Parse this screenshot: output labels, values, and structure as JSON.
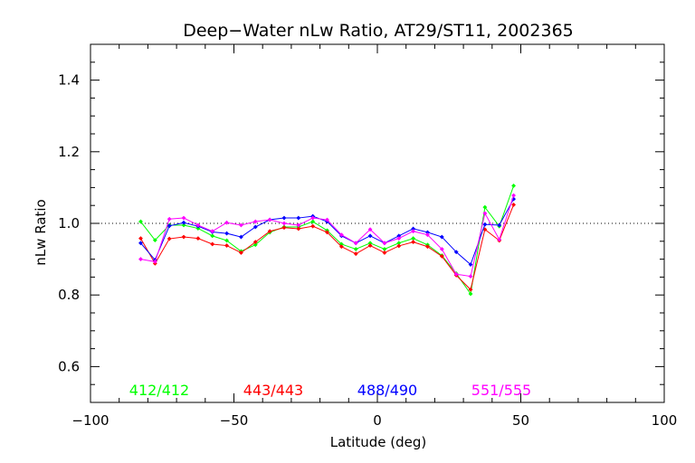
{
  "chart_data": {
    "type": "line",
    "title": "Deep−Water nLw Ratio, AT29/ST11, 2002365",
    "xlabel": "Latitude (deg)",
    "ylabel": "nLw Ratio",
    "xlim": [
      -100,
      100
    ],
    "ylim": [
      0.5,
      1.5
    ],
    "xticks": [
      -100,
      -50,
      0,
      50,
      100
    ],
    "xtick_labels": [
      "−100",
      "−50",
      "0",
      "50",
      "100"
    ],
    "yticks": [
      0.6,
      0.8,
      1.0,
      1.2,
      1.4
    ],
    "ytick_labels": [
      "0.6",
      "0.8",
      "1.0",
      "1.2",
      "1.4"
    ],
    "reference_line": 1.0,
    "grid": false,
    "legend_position": "bottom-inside",
    "x": [
      -82.5,
      -77.5,
      -72.5,
      -67.5,
      -62.5,
      -57.5,
      -52.5,
      -47.5,
      -42.5,
      -37.5,
      -32.5,
      -27.5,
      -22.5,
      -17.5,
      -12.5,
      -7.5,
      -2.5,
      2.5,
      7.5,
      12.5,
      17.5,
      22.5,
      27.5,
      32.5,
      37.5,
      42.5,
      47.5
    ],
    "series": [
      {
        "name": "412/412",
        "color": "#00ff00",
        "values": [
          1.005,
          0.953,
          0.995,
          0.995,
          0.986,
          0.965,
          0.952,
          0.922,
          0.94,
          0.975,
          0.99,
          0.99,
          1.005,
          0.98,
          0.942,
          0.928,
          0.945,
          0.928,
          0.945,
          0.958,
          0.94,
          0.91,
          0.86,
          0.803,
          1.045,
          0.992,
          1.105
        ]
      },
      {
        "name": "443/443",
        "color": "#ff0000",
        "values": [
          0.958,
          0.888,
          0.957,
          0.962,
          0.958,
          0.942,
          0.938,
          0.918,
          0.948,
          0.978,
          0.988,
          0.985,
          0.992,
          0.975,
          0.935,
          0.915,
          0.938,
          0.918,
          0.937,
          0.948,
          0.935,
          0.908,
          0.855,
          0.815,
          0.983,
          0.952,
          1.052
        ]
      },
      {
        "name": "488/490",
        "color": "#0000ff",
        "values": [
          0.945,
          0.898,
          0.993,
          1.002,
          0.992,
          0.976,
          0.972,
          0.962,
          0.99,
          1.01,
          1.015,
          1.015,
          1.02,
          1.005,
          0.965,
          0.945,
          0.965,
          0.945,
          0.965,
          0.985,
          0.975,
          0.962,
          0.92,
          0.885,
          0.997,
          0.995,
          1.068
        ]
      },
      {
        "name": "551/555",
        "color": "#ff00ff",
        "values": [
          0.9,
          0.893,
          1.012,
          1.015,
          0.995,
          0.978,
          1.002,
          0.995,
          1.005,
          1.01,
          1.0,
          0.995,
          1.015,
          1.01,
          0.968,
          0.945,
          0.983,
          0.945,
          0.958,
          0.978,
          0.968,
          0.928,
          0.858,
          0.852,
          1.028,
          0.955,
          1.078
        ]
      }
    ]
  }
}
